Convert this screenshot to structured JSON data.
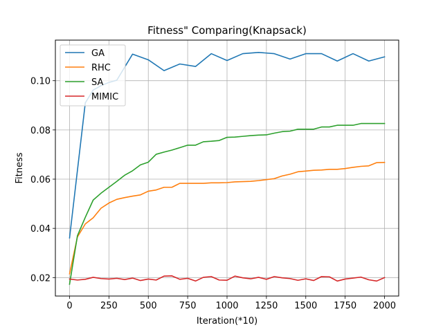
{
  "chart_data": {
    "type": "line",
    "title": "Fitness\" Comparing(Knapsack)",
    "xlabel": "Iteration(*10)",
    "ylabel": "Fitness",
    "xlim": [
      -90,
      2090
    ],
    "ylim": [
      0.0125,
      0.1165
    ],
    "xticks": [
      0,
      250,
      500,
      750,
      1000,
      1250,
      1500,
      1750,
      2000
    ],
    "xtick_labels": [
      "0",
      "250",
      "500",
      "750",
      "1000",
      "1250",
      "1500",
      "1750",
      "2000"
    ],
    "yticks": [
      0.02,
      0.04,
      0.06,
      0.08,
      0.1
    ],
    "ytick_labels": [
      "0.02",
      "0.04",
      "0.06",
      "0.08",
      "0.10"
    ],
    "grid": true,
    "legend_position": "top-left",
    "x": [
      0,
      50,
      100,
      150,
      200,
      250,
      300,
      350,
      400,
      450,
      500,
      550,
      600,
      650,
      700,
      750,
      800,
      850,
      900,
      950,
      1000,
      1050,
      1100,
      1150,
      1200,
      1250,
      1300,
      1350,
      1400,
      1450,
      1500,
      1550,
      1600,
      1650,
      1700,
      1750,
      1800,
      1850,
      1900,
      1950,
      2000
    ],
    "series": [
      {
        "name": "GA",
        "color": "#1f77b4",
        "x": [
          0,
          100,
          150,
          200,
          250,
          300,
          400,
          500,
          600,
          700,
          800,
          900,
          1000,
          1100,
          1200,
          1300,
          1400,
          1500,
          1600,
          1700,
          1800,
          1900,
          2000
        ],
        "values": [
          0.0361,
          0.091,
          0.0962,
          0.098,
          0.0993,
          0.1002,
          0.1108,
          0.1085,
          0.1041,
          0.1068,
          0.1058,
          0.111,
          0.1082,
          0.111,
          0.1115,
          0.111,
          0.1088,
          0.111,
          0.111,
          0.108,
          0.111,
          0.108,
          0.1097
        ]
      },
      {
        "name": "RHC",
        "color": "#ff7f0e",
        "values": [
          0.0215,
          0.0365,
          0.0418,
          0.0443,
          0.0482,
          0.0503,
          0.0518,
          0.0525,
          0.0531,
          0.0536,
          0.0551,
          0.0556,
          0.0567,
          0.0567,
          0.0583,
          0.0583,
          0.0583,
          0.0583,
          0.0585,
          0.0585,
          0.0586,
          0.0589,
          0.059,
          0.0591,
          0.0594,
          0.0598,
          0.0602,
          0.0613,
          0.062,
          0.063,
          0.0633,
          0.0636,
          0.0637,
          0.064,
          0.064,
          0.0643,
          0.0648,
          0.0652,
          0.0654,
          0.0667,
          0.0668
        ]
      },
      {
        "name": "SA",
        "color": "#2ca02c",
        "values": [
          0.0173,
          0.037,
          0.0445,
          0.0515,
          0.0543,
          0.0567,
          0.0591,
          0.0616,
          0.0634,
          0.0658,
          0.0669,
          0.0701,
          0.071,
          0.0718,
          0.0728,
          0.0738,
          0.0738,
          0.0752,
          0.0754,
          0.0757,
          0.077,
          0.0771,
          0.0774,
          0.0777,
          0.0779,
          0.078,
          0.0787,
          0.0793,
          0.0795,
          0.0803,
          0.0803,
          0.0803,
          0.0812,
          0.0812,
          0.0819,
          0.0819,
          0.0819,
          0.0826,
          0.0826,
          0.0826,
          0.0826
        ]
      },
      {
        "name": "MIMIC",
        "color": "#d62728",
        "values": [
          0.0194,
          0.019,
          0.0193,
          0.0201,
          0.0196,
          0.0194,
          0.0197,
          0.0192,
          0.0198,
          0.0188,
          0.0194,
          0.019,
          0.0206,
          0.0207,
          0.0193,
          0.0197,
          0.0186,
          0.0201,
          0.0204,
          0.019,
          0.0189,
          0.0206,
          0.0199,
          0.0195,
          0.0201,
          0.0193,
          0.0204,
          0.0199,
          0.0196,
          0.0189,
          0.0195,
          0.0188,
          0.0204,
          0.0203,
          0.0186,
          0.0194,
          0.0198,
          0.0202,
          0.0191,
          0.0186,
          0.02
        ]
      }
    ]
  }
}
